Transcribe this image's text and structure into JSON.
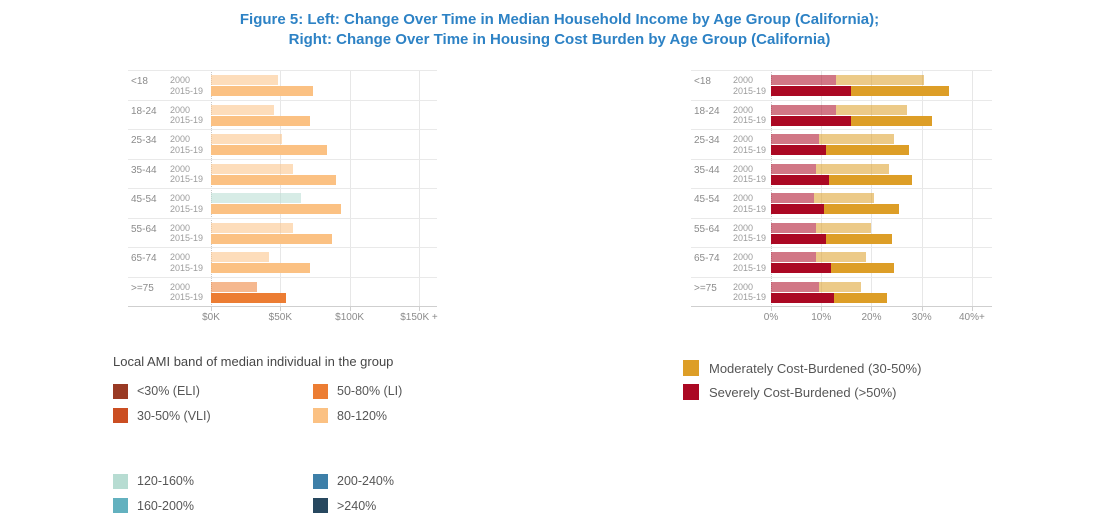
{
  "title": {
    "line1": "Figure 5: Left: Change Over Time in Median Household Income by Age Group (California);",
    "line2": "Right: Change Over Time in Housing Cost Burden by Age Group (California)"
  },
  "colors": {
    "title_blue": "#2d82c5",
    "bands": {
      "eli": "#993a24",
      "vli": "#cb4e22",
      "li": "#ec7d33",
      "b80_120": "#fbc183",
      "b120_160": "#b7dcd2",
      "b160_200": "#63b1bf",
      "b200_240": "#3d7fa8",
      "b240plus": "#27485f"
    },
    "burden": {
      "moderate": "#dd9e27",
      "severe": "#ab0823"
    }
  },
  "chart_data": [
    {
      "type": "bar",
      "orientation": "horizontal",
      "title": "Change Over Time in Median Household Income by Age Group (California)",
      "categories": [
        "<18",
        "18-24",
        "25-34",
        "35-44",
        "45-54",
        "55-64",
        "65-74",
        ">=75"
      ],
      "units": "thousand dollars",
      "series": [
        {
          "name": "2000",
          "values_k": [
            48,
            45.5,
            51.5,
            59,
            65,
            59,
            41.5,
            33
          ],
          "band_keys": [
            "b80_120",
            "b80_120",
            "b80_120",
            "b80_120",
            "b120_160",
            "b80_120",
            "b80_120",
            "li"
          ],
          "faded": true
        },
        {
          "name": "2015-19",
          "values_k": [
            73.5,
            71.5,
            84,
            90,
            93.5,
            87.5,
            71.5,
            54
          ],
          "band_keys": [
            "b80_120",
            "b80_120",
            "b80_120",
            "b80_120",
            "b80_120",
            "b80_120",
            "b80_120",
            "li"
          ],
          "faded": false
        }
      ],
      "xlim": [
        0,
        163
      ],
      "grid": true,
      "x_ticks": [
        {
          "value": 0,
          "label": "$0K"
        },
        {
          "value": 50,
          "label": "$50K"
        },
        {
          "value": 100,
          "label": "$100K"
        },
        {
          "value": 150,
          "label": "$150K +"
        }
      ]
    },
    {
      "type": "stacked-bar",
      "orientation": "horizontal",
      "title": "Change Over Time in Housing Cost Burden by Age Group (California)",
      "categories": [
        "<18",
        "18-24",
        "25-34",
        "35-44",
        "45-54",
        "55-64",
        "65-74",
        ">=75"
      ],
      "units": "percent of households",
      "stack_order": [
        "severe",
        "moderate"
      ],
      "series": [
        {
          "name": "2000",
          "severe_pct": [
            13,
            13,
            9.5,
            9,
            8.5,
            9,
            9,
            9.5
          ],
          "moderate_pct": [
            17.5,
            14,
            15,
            14.5,
            12,
            11,
            10,
            8.5
          ],
          "faded": true
        },
        {
          "name": "2015-19",
          "severe_pct": [
            16,
            16,
            11,
            11.5,
            10.5,
            11,
            12,
            12.5
          ],
          "moderate_pct": [
            19.5,
            16,
            16.5,
            16.5,
            15,
            13,
            12.5,
            10.5
          ],
          "faded": false
        }
      ],
      "xlim": [
        0,
        44
      ],
      "grid": true,
      "x_ticks": [
        {
          "value": 0,
          "label": "0%"
        },
        {
          "value": 10,
          "label": "10%"
        },
        {
          "value": 20,
          "label": "20%"
        },
        {
          "value": 30,
          "label": "30%"
        },
        {
          "value": 40,
          "label": "40%+"
        }
      ]
    }
  ],
  "ami_legend": {
    "header": "Local AMI band of median individual in the group",
    "block1": [
      {
        "label": "<30% (ELI)",
        "band": "eli"
      },
      {
        "label": "30-50% (VLI)",
        "band": "vli"
      },
      {
        "label": "50-80% (LI)",
        "band": "li"
      },
      {
        "label": "80-120%",
        "band": "b80_120"
      }
    ],
    "block2": [
      {
        "label": "120-160%",
        "band": "b120_160"
      },
      {
        "label": "160-200%",
        "band": "b160_200"
      },
      {
        "label": "200-240%",
        "band": "b200_240"
      },
      {
        "label": ">240%",
        "band": "b240plus"
      }
    ]
  },
  "burden_legend": [
    {
      "label": "Moderately Cost-Burdened (30-50%)",
      "key": "moderate"
    },
    {
      "label": "Severely Cost-Burdened (>50%)",
      "key": "severe"
    }
  ]
}
